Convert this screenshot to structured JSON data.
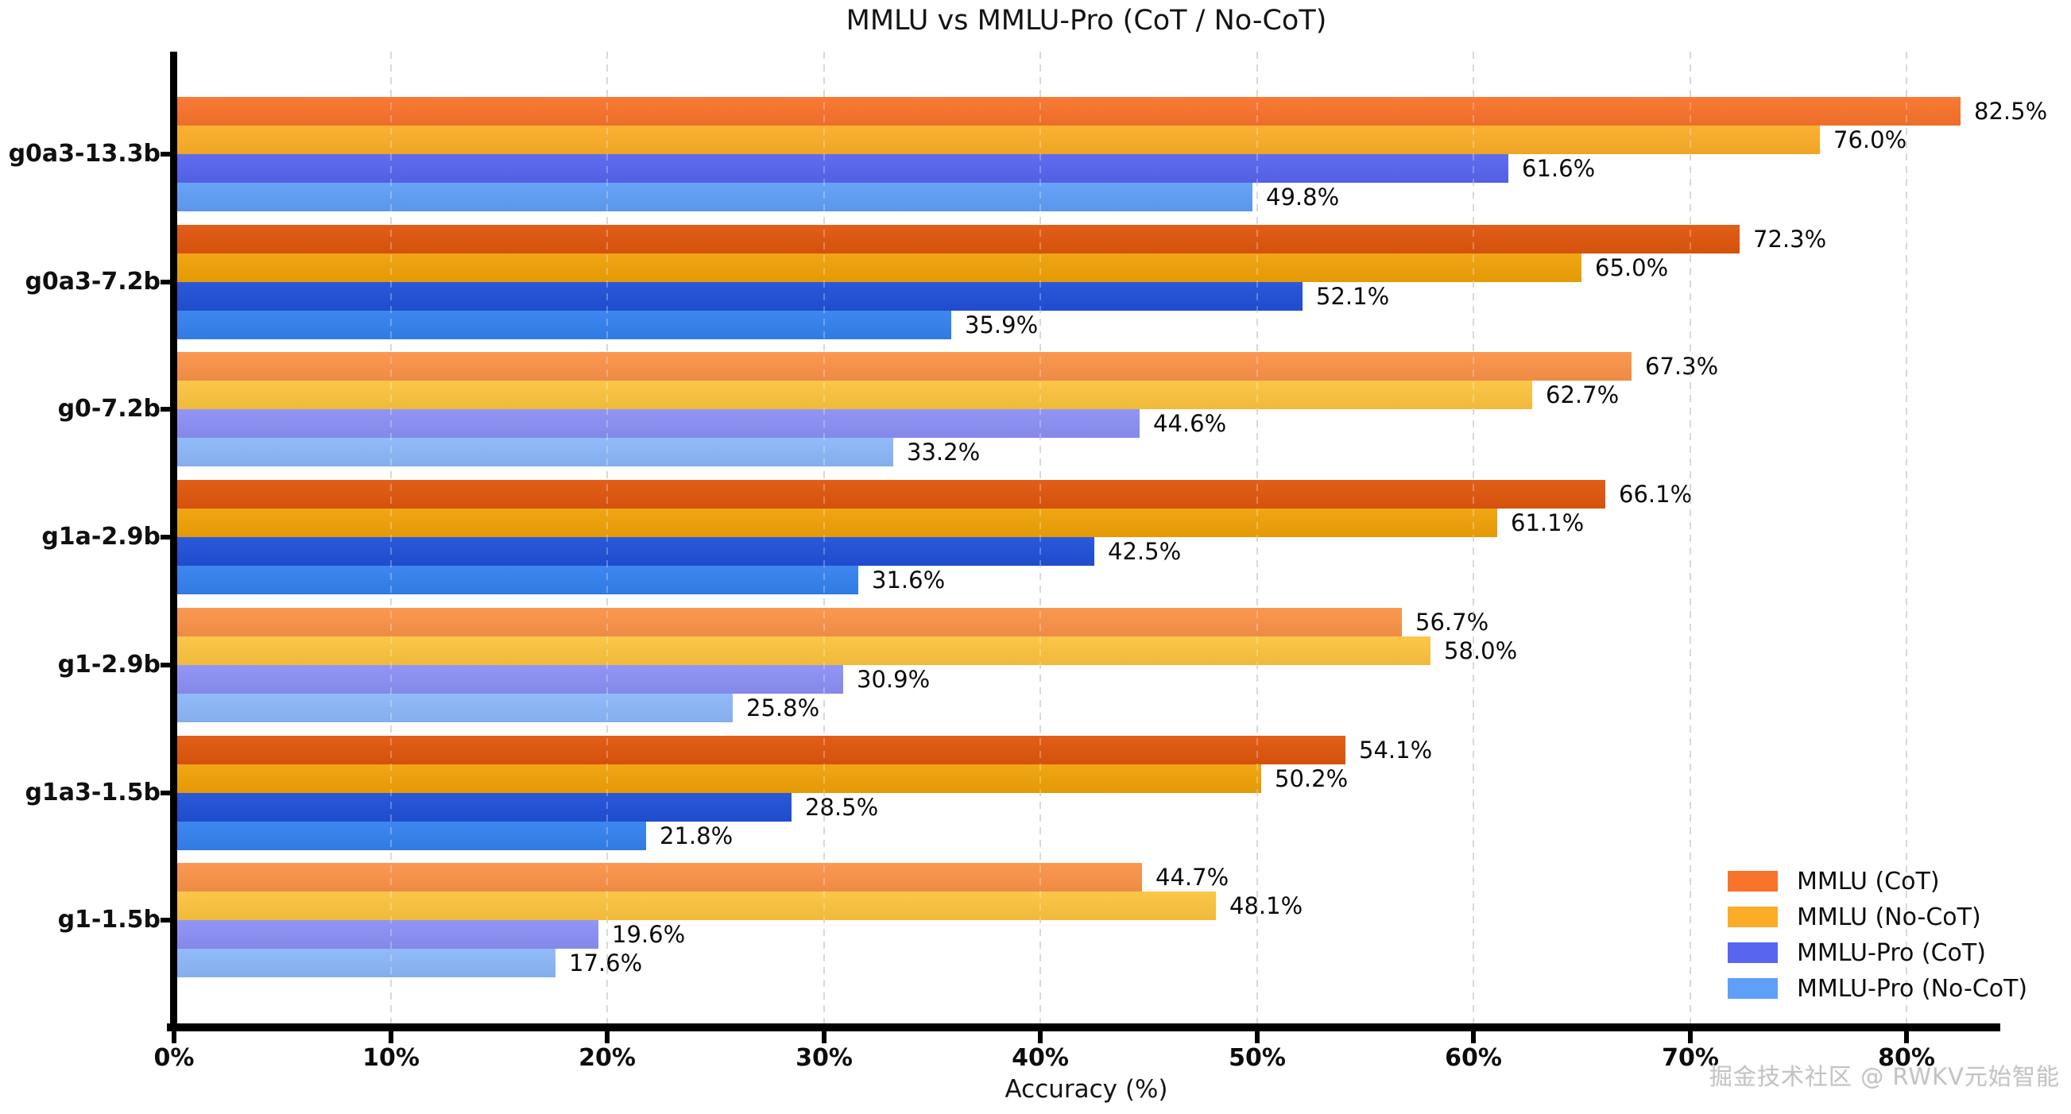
{
  "watermark": "掘金技术社区 @ RWKV元始智能",
  "chart_data": {
    "type": "bar",
    "orientation": "horizontal",
    "title": "MMLU vs MMLU-Pro (CoT / No-CoT)",
    "xlabel": "Accuracy (%)",
    "ylabel": "",
    "grid": "vertical-dashed",
    "grid_color": "#cbcbcb",
    "xlim": [
      0,
      84.2
    ],
    "xticks": [
      0,
      10,
      20,
      30,
      40,
      50,
      60,
      70,
      80
    ],
    "xtick_labels": [
      "0%",
      "10%",
      "20%",
      "30%",
      "40%",
      "50%",
      "60%",
      "70%",
      "80%"
    ],
    "legend_position": "lower right",
    "value_label_suffix": "%",
    "categories": [
      "g0a3-13.3b",
      "g0a3-7.2b",
      "g0-7.2b",
      "g1a-2.9b",
      "g1-2.9b",
      "g1a3-1.5b",
      "g1-1.5b"
    ],
    "group_shade_variants": [
      "base",
      "dark",
      "light",
      "dark",
      "light",
      "dark",
      "light"
    ],
    "series": [
      {
        "name": "MMLU (CoT)",
        "legend_color": "#F9732B",
        "colors": {
          "base": "#F9732B",
          "dark": "#E0560D",
          "light": "#FA9349"
        },
        "values": [
          82.5,
          72.3,
          67.3,
          66.1,
          56.7,
          54.1,
          44.7
        ]
      },
      {
        "name": "MMLU (No-CoT)",
        "legend_color": "#FBAD27",
        "colors": {
          "base": "#FBAD27",
          "dark": "#F0A106",
          "light": "#FCC33E"
        },
        "values": [
          76.0,
          65.0,
          62.7,
          61.1,
          58.0,
          50.2,
          48.1
        ]
      },
      {
        "name": "MMLU-Pro (CoT)",
        "legend_color": "#5865EF",
        "colors": {
          "base": "#5865EF",
          "dark": "#2050D8",
          "light": "#8B90F5"
        },
        "values": [
          61.6,
          52.1,
          44.6,
          42.5,
          30.9,
          28.5,
          19.6
        ]
      },
      {
        "name": "MMLU-Pro (No-CoT)",
        "legend_color": "#5F9FF7",
        "colors": {
          "base": "#5F9FF7",
          "dark": "#3381EF",
          "light": "#8CB7F9"
        },
        "values": [
          49.8,
          35.9,
          33.2,
          31.6,
          25.8,
          21.8,
          17.6
        ]
      }
    ]
  }
}
